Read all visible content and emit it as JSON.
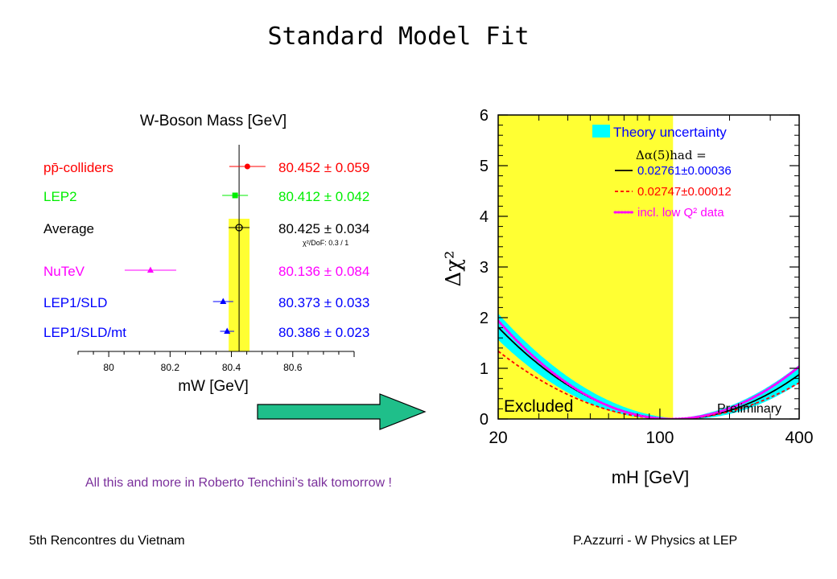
{
  "slide": {
    "title": "Standard Model Fit",
    "talk_note": "All this and more in Roberto Tenchini’s talk tomorrow !",
    "footer_left": "5th Rencontres du Vietnam",
    "footer_right": "P.Azzurri - W Physics at LEP",
    "arrow_color": "#1fbf8a"
  },
  "chart_data": [
    {
      "type": "scatter",
      "title": "W-Boson Mass  [GeV]",
      "xlabel": "mW  [GeV]",
      "x_ticks": [
        "80",
        "80.2",
        "80.4",
        "80.6"
      ],
      "xlim": [
        79.9,
        80.8
      ],
      "average_band": {
        "center": 80.425,
        "error": 0.034,
        "color": "#ffff33"
      },
      "chi2_note": "χ²/DoF: 0.3 / 1",
      "measurements": [
        {
          "label": "pp̄-colliders",
          "value": 80.452,
          "error": 0.059,
          "text": "80.452 ± 0.059",
          "color": "#ff0000",
          "marker": "circle"
        },
        {
          "label": "LEP2",
          "value": 80.412,
          "error": 0.042,
          "text": "80.412 ± 0.042",
          "color": "#00ee00",
          "marker": "square"
        },
        {
          "label": "Average",
          "value": 80.425,
          "error": 0.034,
          "text": "80.425 ± 0.034",
          "color": "#000000",
          "marker": "open-circle"
        },
        {
          "label": "NuTeV",
          "value": 80.136,
          "error": 0.084,
          "text": "80.136 ± 0.084",
          "color": "#ff00ff",
          "marker": "triangle"
        },
        {
          "label": "LEP1/SLD",
          "value": 80.373,
          "error": 0.033,
          "text": "80.373 ± 0.033",
          "color": "#0000ff",
          "marker": "triangle"
        },
        {
          "label": "LEP1/SLD/mt",
          "value": 80.386,
          "error": 0.023,
          "text": "80.386 ± 0.023",
          "color": "#0000ff",
          "marker": "triangle"
        }
      ]
    },
    {
      "type": "line",
      "xlabel": "mH  [GeV]",
      "ylabel": "Δχ²",
      "x_scale": "log",
      "xlim": [
        20,
        400
      ],
      "ylim": [
        0,
        6
      ],
      "x_ticks": [
        "20",
        "100",
        "400"
      ],
      "y_ticks": [
        "0",
        "1",
        "2",
        "3",
        "4",
        "5",
        "6"
      ],
      "excluded_region": {
        "x_max": 114,
        "label": "Excluded",
        "color": "#ffff33"
      },
      "preliminary_label": "Preliminary",
      "theory_band": {
        "label": "Theory uncertainty",
        "color": "#00ffff",
        "width_decades": 0.11
      },
      "legend_header": "Δα(5)had =",
      "series": [
        {
          "name": "0.02761±0.00036",
          "color": "#000000",
          "style": "solid",
          "minimum": 117,
          "width_decades": 0.57
        },
        {
          "name": "0.02747±0.00012",
          "color": "#ff0000",
          "style": "dashed",
          "minimum": 113,
          "width_decades": 0.65
        },
        {
          "name": "incl. low Q² data",
          "color": "#ff00ff",
          "style": "dotted",
          "minimum": 113,
          "width_decades": 0.54
        }
      ]
    }
  ]
}
